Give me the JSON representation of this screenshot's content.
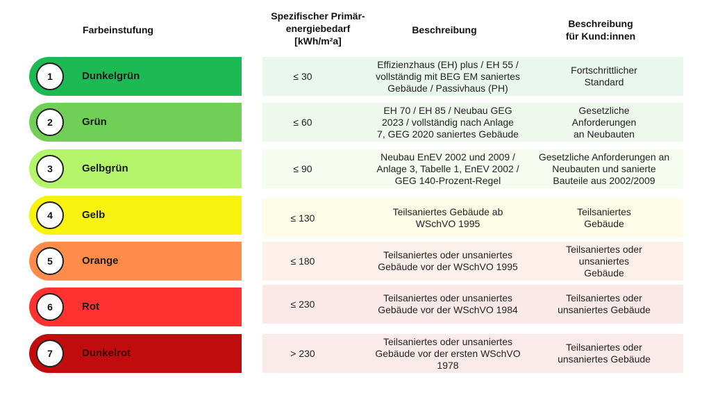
{
  "headers": {
    "color_class": "Farbeinstufung",
    "energy_line1": "Spezifischer Primär-",
    "energy_line2": "energiebedarf",
    "energy_line3": "[kWh/m²a]",
    "description": "Beschreibung",
    "customer_line1": "Beschreibung",
    "customer_line2": "für Kund:innen"
  },
  "rows": [
    {
      "number": "1",
      "label": "Dunkelgrün",
      "color": "#1db954",
      "bg": "#e9f7ef",
      "value": "≤ 30",
      "desc": [
        "Effizienzhaus (EH) plus / EH 55 /",
        "vollständig mit BEG EM saniertes",
        "Gebäude / Passivhaus (PH)"
      ],
      "cust": [
        "Fortschrittlicher",
        "Standard"
      ]
    },
    {
      "number": "2",
      "label": "Grün",
      "color": "#6fcf57",
      "bg": "#eef8ec",
      "value": "≤ 60",
      "desc": [
        "EH 70 / EH 85 / Neubau GEG",
        "2023 / vollständig nach Anlage",
        "7, GEG 2020 saniertes Gebäude"
      ],
      "cust": [
        "Gesetzliche",
        "Anforderungen",
        "an Neubauten"
      ]
    },
    {
      "number": "3",
      "label": "Gelbgrün",
      "color": "#b5f56b",
      "bg": "#f6fcf0",
      "value": "≤ 90",
      "desc": [
        "Neubau EnEV 2002 und 2009 /",
        "Anlage 3, Tabelle 1, EnEV 2002 /",
        "GEG 140-Prozent-Regel"
      ],
      "cust": [
        "Gesetzliche Anforderungen an",
        "Neubauten und sanierte",
        "Bauteile aus 2002/2009"
      ]
    },
    {
      "number": "4",
      "label": "Gelb",
      "color": "#f7f20e",
      "bg": "#fdfce6",
      "value": "≤ 130",
      "desc": [
        "Teilsaniertes Gebäude ab",
        "WSchVO 1995"
      ],
      "cust": [
        "Teilsaniertes",
        "Gebäude"
      ]
    },
    {
      "number": "5",
      "label": "Orange",
      "color": "#ff8c4a",
      "bg": "#fdf0ea",
      "value": "≤ 180",
      "desc": [
        "Teilsaniertes oder unsaniertes",
        "Gebäude vor der WSchVO 1995"
      ],
      "cust": [
        "Teilsaniertes oder",
        "unsaniertes",
        "Gebäude"
      ]
    },
    {
      "number": "6",
      "label": "Rot",
      "color": "#ff3131",
      "bg": "#fbe9e9",
      "value": "≤ 230",
      "desc": [
        "Teilsaniertes oder unsaniertes",
        "Gebäude vor der WSchVO 1984"
      ],
      "cust": [
        "Teilsaniertes oder",
        "unsaniertes Gebäude"
      ]
    },
    {
      "number": "7",
      "label": "Dunkelrot",
      "color": "#c00c0c",
      "bg": "#fbeaea",
      "value": "> 230",
      "desc": [
        "Teilsaniertes oder unsaniertes",
        "Gebäude vor der ersten WSchVO",
        "1978"
      ],
      "cust": [
        "Teilsaniertes oder",
        "unsaniertes Gebäude"
      ]
    }
  ]
}
